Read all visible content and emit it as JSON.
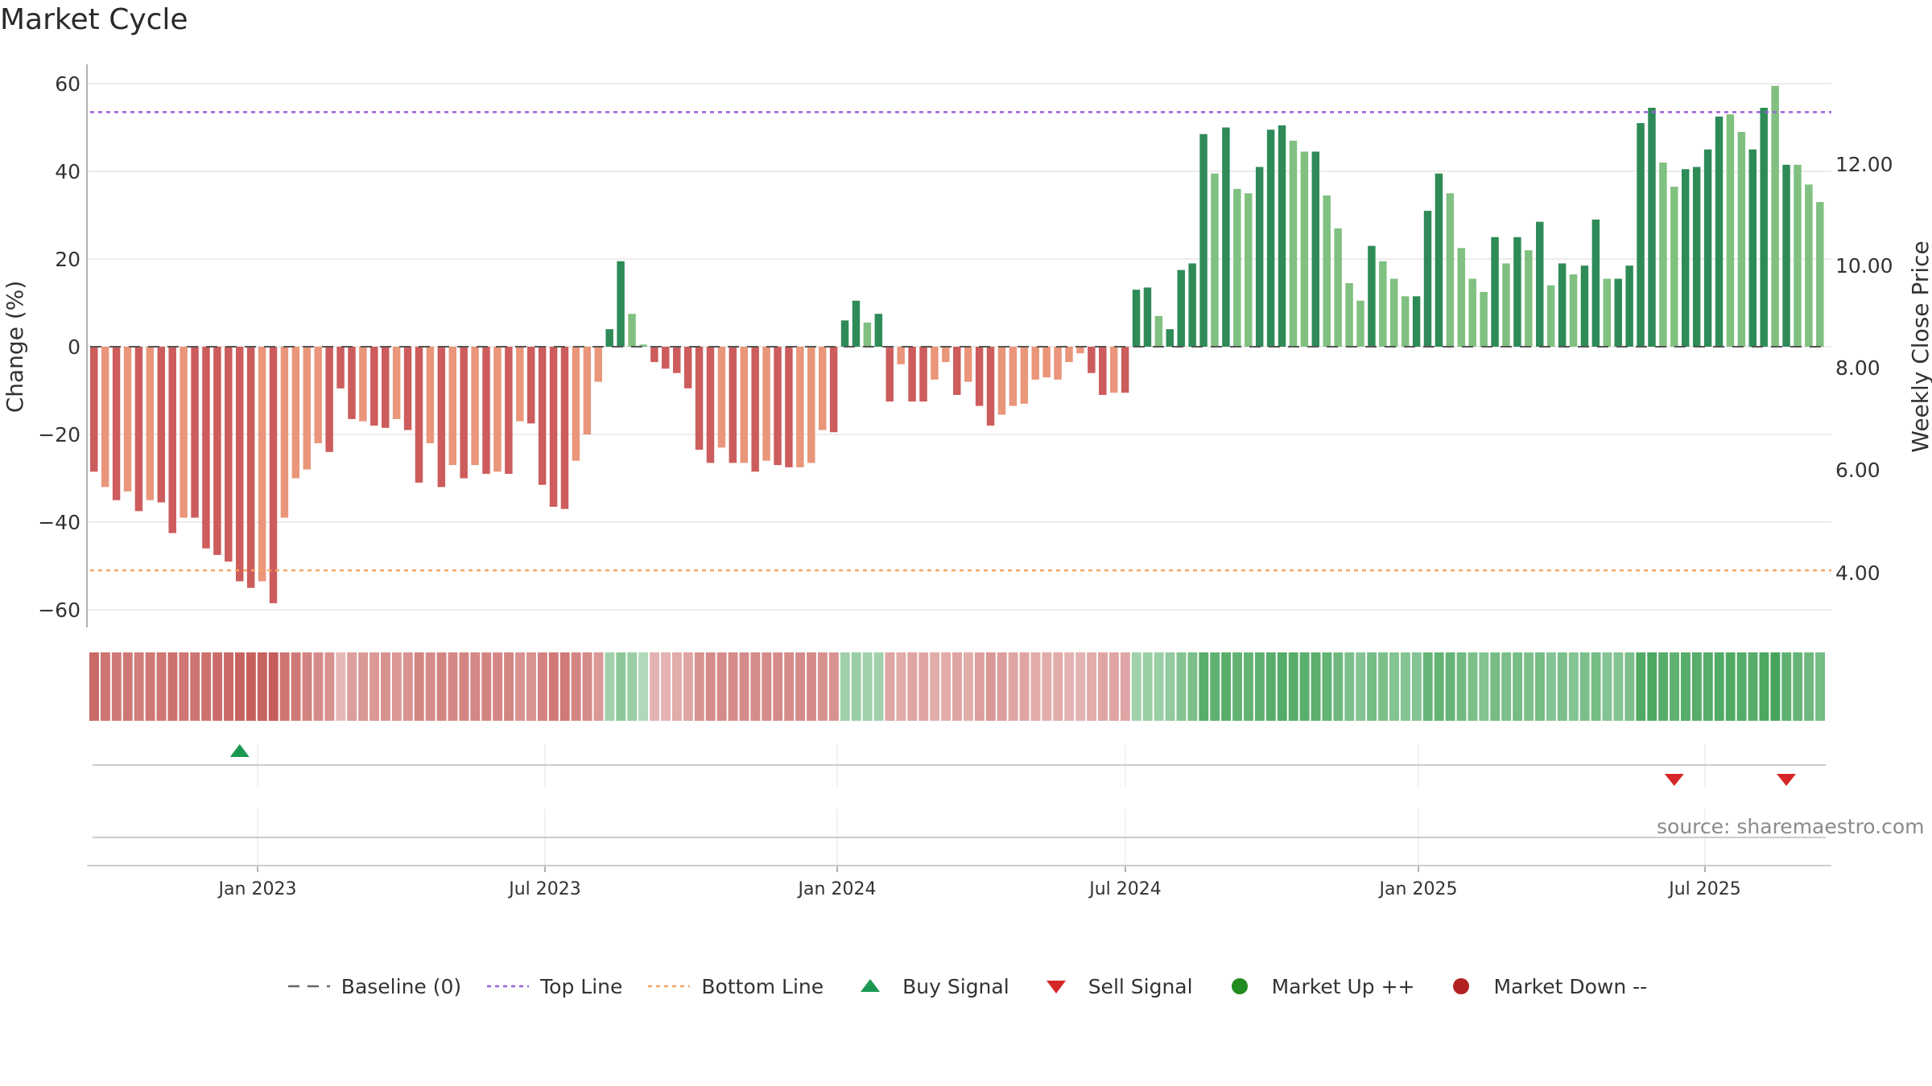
{
  "chart_data": {
    "type": "bar",
    "title": "Market Cycle",
    "ylabel": "Change (%)",
    "y2label": "Weekly Close Price",
    "ylim": [
      -64,
      64
    ],
    "y_ticks": [
      "−60",
      "−40",
      "−20",
      "0",
      "20",
      "40",
      "60"
    ],
    "y2_ticks": [
      "4.00",
      "6.00",
      "8.00",
      "10.00",
      "12.00"
    ],
    "x_ticks": [
      "Jan 2023",
      "Jul 2023",
      "Jan 2024",
      "Jul 2024",
      "Jan 2025",
      "Jul 2025"
    ],
    "top_line": 53.5,
    "bottom_line": -51,
    "series": [
      {
        "name": "Change (%)",
        "values": [
          -28.5,
          -32,
          -35,
          -33,
          -37.5,
          -35,
          -35.5,
          -42.5,
          -39,
          -39,
          -46,
          -47.5,
          -49,
          -53.5,
          -55,
          -53.5,
          -58.5,
          -39,
          -30,
          -28,
          -22,
          -24,
          -9.5,
          -16.5,
          -17,
          -18,
          -18.5,
          -16.5,
          -19,
          -31,
          -22,
          -32,
          -27,
          -30,
          -27,
          -29,
          -28.5,
          -29,
          -17,
          -17.5,
          -31.5,
          -36.5,
          -37,
          -26,
          -20,
          -8,
          4,
          19.5,
          7.5,
          0.5,
          -3.5,
          -5,
          -6,
          -9.5,
          -23.5,
          -26.5,
          -23,
          -26.5,
          -26.5,
          -28.5,
          -26,
          -27,
          -27.5,
          -27.5,
          -26.5,
          -19,
          -19.5,
          6,
          10.5,
          5.5,
          7.5,
          -12.5,
          -4,
          -12.5,
          -12.5,
          -7.5,
          -3.5,
          -11,
          -8,
          -13.5,
          -18,
          -15.5,
          -13.5,
          -13,
          -7.5,
          -7,
          -7.5,
          -3.5,
          -1.5,
          -6,
          -11,
          -10.5,
          -10.5,
          13,
          13.5,
          7,
          4,
          17.5,
          19,
          48.5,
          39.5,
          50,
          36,
          35,
          41,
          49.5,
          50.5,
          47,
          44.5,
          44.5,
          34.5,
          27,
          14.5,
          10.5,
          23,
          19.5,
          15.5,
          11.5,
          11.5,
          31,
          39.5,
          35,
          22.5,
          15.5,
          12.5,
          25,
          19,
          25,
          22,
          28.5,
          14,
          19,
          16.5,
          18.5,
          29,
          15.5,
          15.5,
          18.5,
          51,
          54.5,
          42,
          36.5,
          40.5,
          41,
          45,
          52.5,
          53,
          49,
          45,
          54.5,
          59.5,
          41.5,
          41.5,
          37,
          33
        ],
        "shades": [
          1,
          0,
          1,
          0,
          1,
          0,
          1,
          1,
          0,
          1,
          1,
          1,
          1,
          1,
          1,
          0,
          1,
          0,
          0,
          0,
          0,
          1,
          1,
          1,
          0,
          1,
          1,
          0,
          1,
          1,
          0,
          1,
          0,
          1,
          0,
          1,
          0,
          1,
          0,
          1,
          1,
          1,
          1,
          0,
          0,
          0,
          1,
          1,
          0,
          0,
          1,
          1,
          1,
          1,
          1,
          1,
          0,
          1,
          0,
          1,
          0,
          1,
          1,
          0,
          0,
          0,
          1,
          1,
          1,
          0,
          1,
          1,
          0,
          1,
          1,
          0,
          0,
          1,
          0,
          1,
          1,
          0,
          0,
          0,
          0,
          0,
          0,
          0,
          0,
          1,
          1,
          0,
          1,
          1,
          1,
          0,
          1,
          1,
          1,
          1,
          0,
          1,
          0,
          0,
          1,
          1,
          1,
          0,
          0,
          1,
          0,
          0,
          0,
          0,
          1,
          0,
          0,
          0,
          1,
          1,
          1,
          0,
          0,
          0,
          0,
          1,
          0,
          1,
          0,
          1,
          0,
          1,
          0,
          1,
          1,
          0,
          1,
          1,
          1,
          1,
          0,
          0,
          1,
          1,
          1,
          1,
          0,
          0,
          1,
          1,
          0,
          1,
          0,
          0
        ],
        "heat": [
          0.8,
          0.72,
          0.68,
          0.7,
          0.65,
          0.7,
          0.7,
          0.75,
          0.7,
          0.72,
          0.75,
          0.78,
          0.8,
          0.85,
          0.88,
          0.85,
          0.9,
          0.72,
          0.68,
          0.62,
          0.55,
          0.5,
          0.2,
          0.4,
          0.45,
          0.45,
          0.5,
          0.45,
          0.5,
          0.6,
          0.55,
          0.6,
          0.58,
          0.6,
          0.58,
          0.6,
          0.58,
          0.6,
          0.5,
          0.5,
          0.62,
          0.68,
          0.68,
          0.6,
          0.55,
          0.45,
          0.3,
          0.45,
          0.35,
          0.2,
          0.25,
          0.25,
          0.3,
          0.35,
          0.5,
          0.55,
          0.55,
          0.55,
          0.55,
          0.55,
          0.55,
          0.55,
          0.55,
          0.55,
          0.55,
          0.5,
          0.5,
          0.3,
          0.35,
          0.3,
          0.3,
          0.35,
          0.3,
          0.35,
          0.35,
          0.3,
          0.3,
          0.35,
          0.3,
          0.4,
          0.45,
          0.4,
          0.35,
          0.35,
          0.3,
          0.3,
          0.3,
          0.25,
          0.25,
          0.3,
          0.35,
          0.35,
          0.35,
          0.3,
          0.35,
          0.35,
          0.4,
          0.5,
          0.55,
          0.8,
          0.75,
          0.8,
          0.72,
          0.72,
          0.75,
          0.8,
          0.82,
          0.8,
          0.78,
          0.78,
          0.72,
          0.65,
          0.55,
          0.5,
          0.6,
          0.55,
          0.5,
          0.5,
          0.5,
          0.7,
          0.72,
          0.7,
          0.62,
          0.55,
          0.5,
          0.6,
          0.55,
          0.6,
          0.55,
          0.6,
          0.5,
          0.55,
          0.5,
          0.55,
          0.6,
          0.5,
          0.5,
          0.55,
          0.85,
          0.88,
          0.8,
          0.75,
          0.8,
          0.8,
          0.82,
          0.85,
          0.85,
          0.82,
          0.8,
          0.88,
          0.92,
          0.75,
          0.7,
          0.65,
          0.6
        ]
      }
    ],
    "signals": [
      {
        "type": "buy",
        "week": 13
      },
      {
        "type": "sell",
        "week": 141
      },
      {
        "type": "sell",
        "week": 151
      }
    ],
    "colors": {
      "down_dark": "#cd5c5c",
      "down_light": "#e9967a",
      "up_dark": "#2e8b57",
      "up_light": "#80c080",
      "top_line": "#9a5fdc",
      "bottom_line": "#f4a460",
      "buy": "#1a9850",
      "sell": "#d62728",
      "market_up": "#228b22",
      "market_down": "#b22222"
    },
    "legend": [
      {
        "label": "Baseline (0)",
        "symbol": "baseline"
      },
      {
        "label": "Top Line",
        "symbol": "top-line"
      },
      {
        "label": "Bottom Line",
        "symbol": "bottom-line"
      },
      {
        "label": "Buy Signal",
        "symbol": "buy"
      },
      {
        "label": "Sell Signal",
        "symbol": "sell"
      },
      {
        "label": "Market Up ++",
        "symbol": "market-up"
      },
      {
        "label": "Market Down --",
        "symbol": "market-down"
      }
    ],
    "source": "source: sharemaestro.com"
  }
}
